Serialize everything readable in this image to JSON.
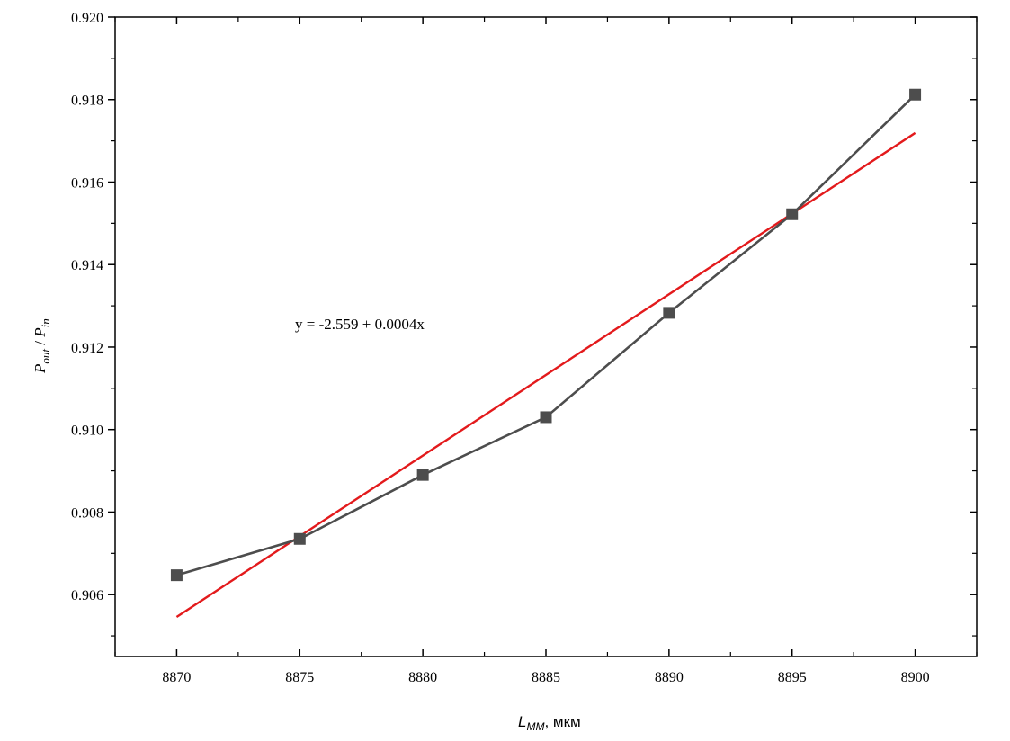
{
  "chart_data": {
    "type": "line",
    "x": [
      8870,
      8875,
      8880,
      8885,
      8890,
      8895,
      8900
    ],
    "series": [
      {
        "values": [
          0.90647,
          0.90735,
          0.9089,
          0.9103,
          0.91283,
          0.91522,
          0.91812
        ],
        "color": "#4d4d4d",
        "marker": "square"
      }
    ],
    "fit": {
      "intercept": -2.559,
      "slope": 0.0004,
      "x_range": [
        8870,
        8900
      ],
      "y_range": [
        0.90546,
        0.91719
      ],
      "color": "#e31a1c"
    },
    "annotation": "y = -2.559 + 0.0004x",
    "xlabel": {
      "main": "L",
      "sub": "MM",
      "suffix": ", мкм"
    },
    "ylabel": {
      "p1": "P",
      "sub1": "out",
      "mid": " / ",
      "p2": "P",
      "sub2": "in"
    },
    "xlim": [
      8867.5,
      8902.5
    ],
    "ylim": [
      0.9045,
      0.92
    ],
    "xticks": [
      8870,
      8875,
      8880,
      8885,
      8890,
      8895,
      8900
    ],
    "yticks": [
      0.906,
      0.908,
      0.91,
      0.912,
      0.914,
      0.916,
      0.918,
      0.92
    ],
    "ytick_labels": [
      "0.906",
      "0.908",
      "0.910",
      "0.912",
      "0.914",
      "0.916",
      "0.918",
      "0.920"
    ],
    "grid": false,
    "legend": "none"
  }
}
